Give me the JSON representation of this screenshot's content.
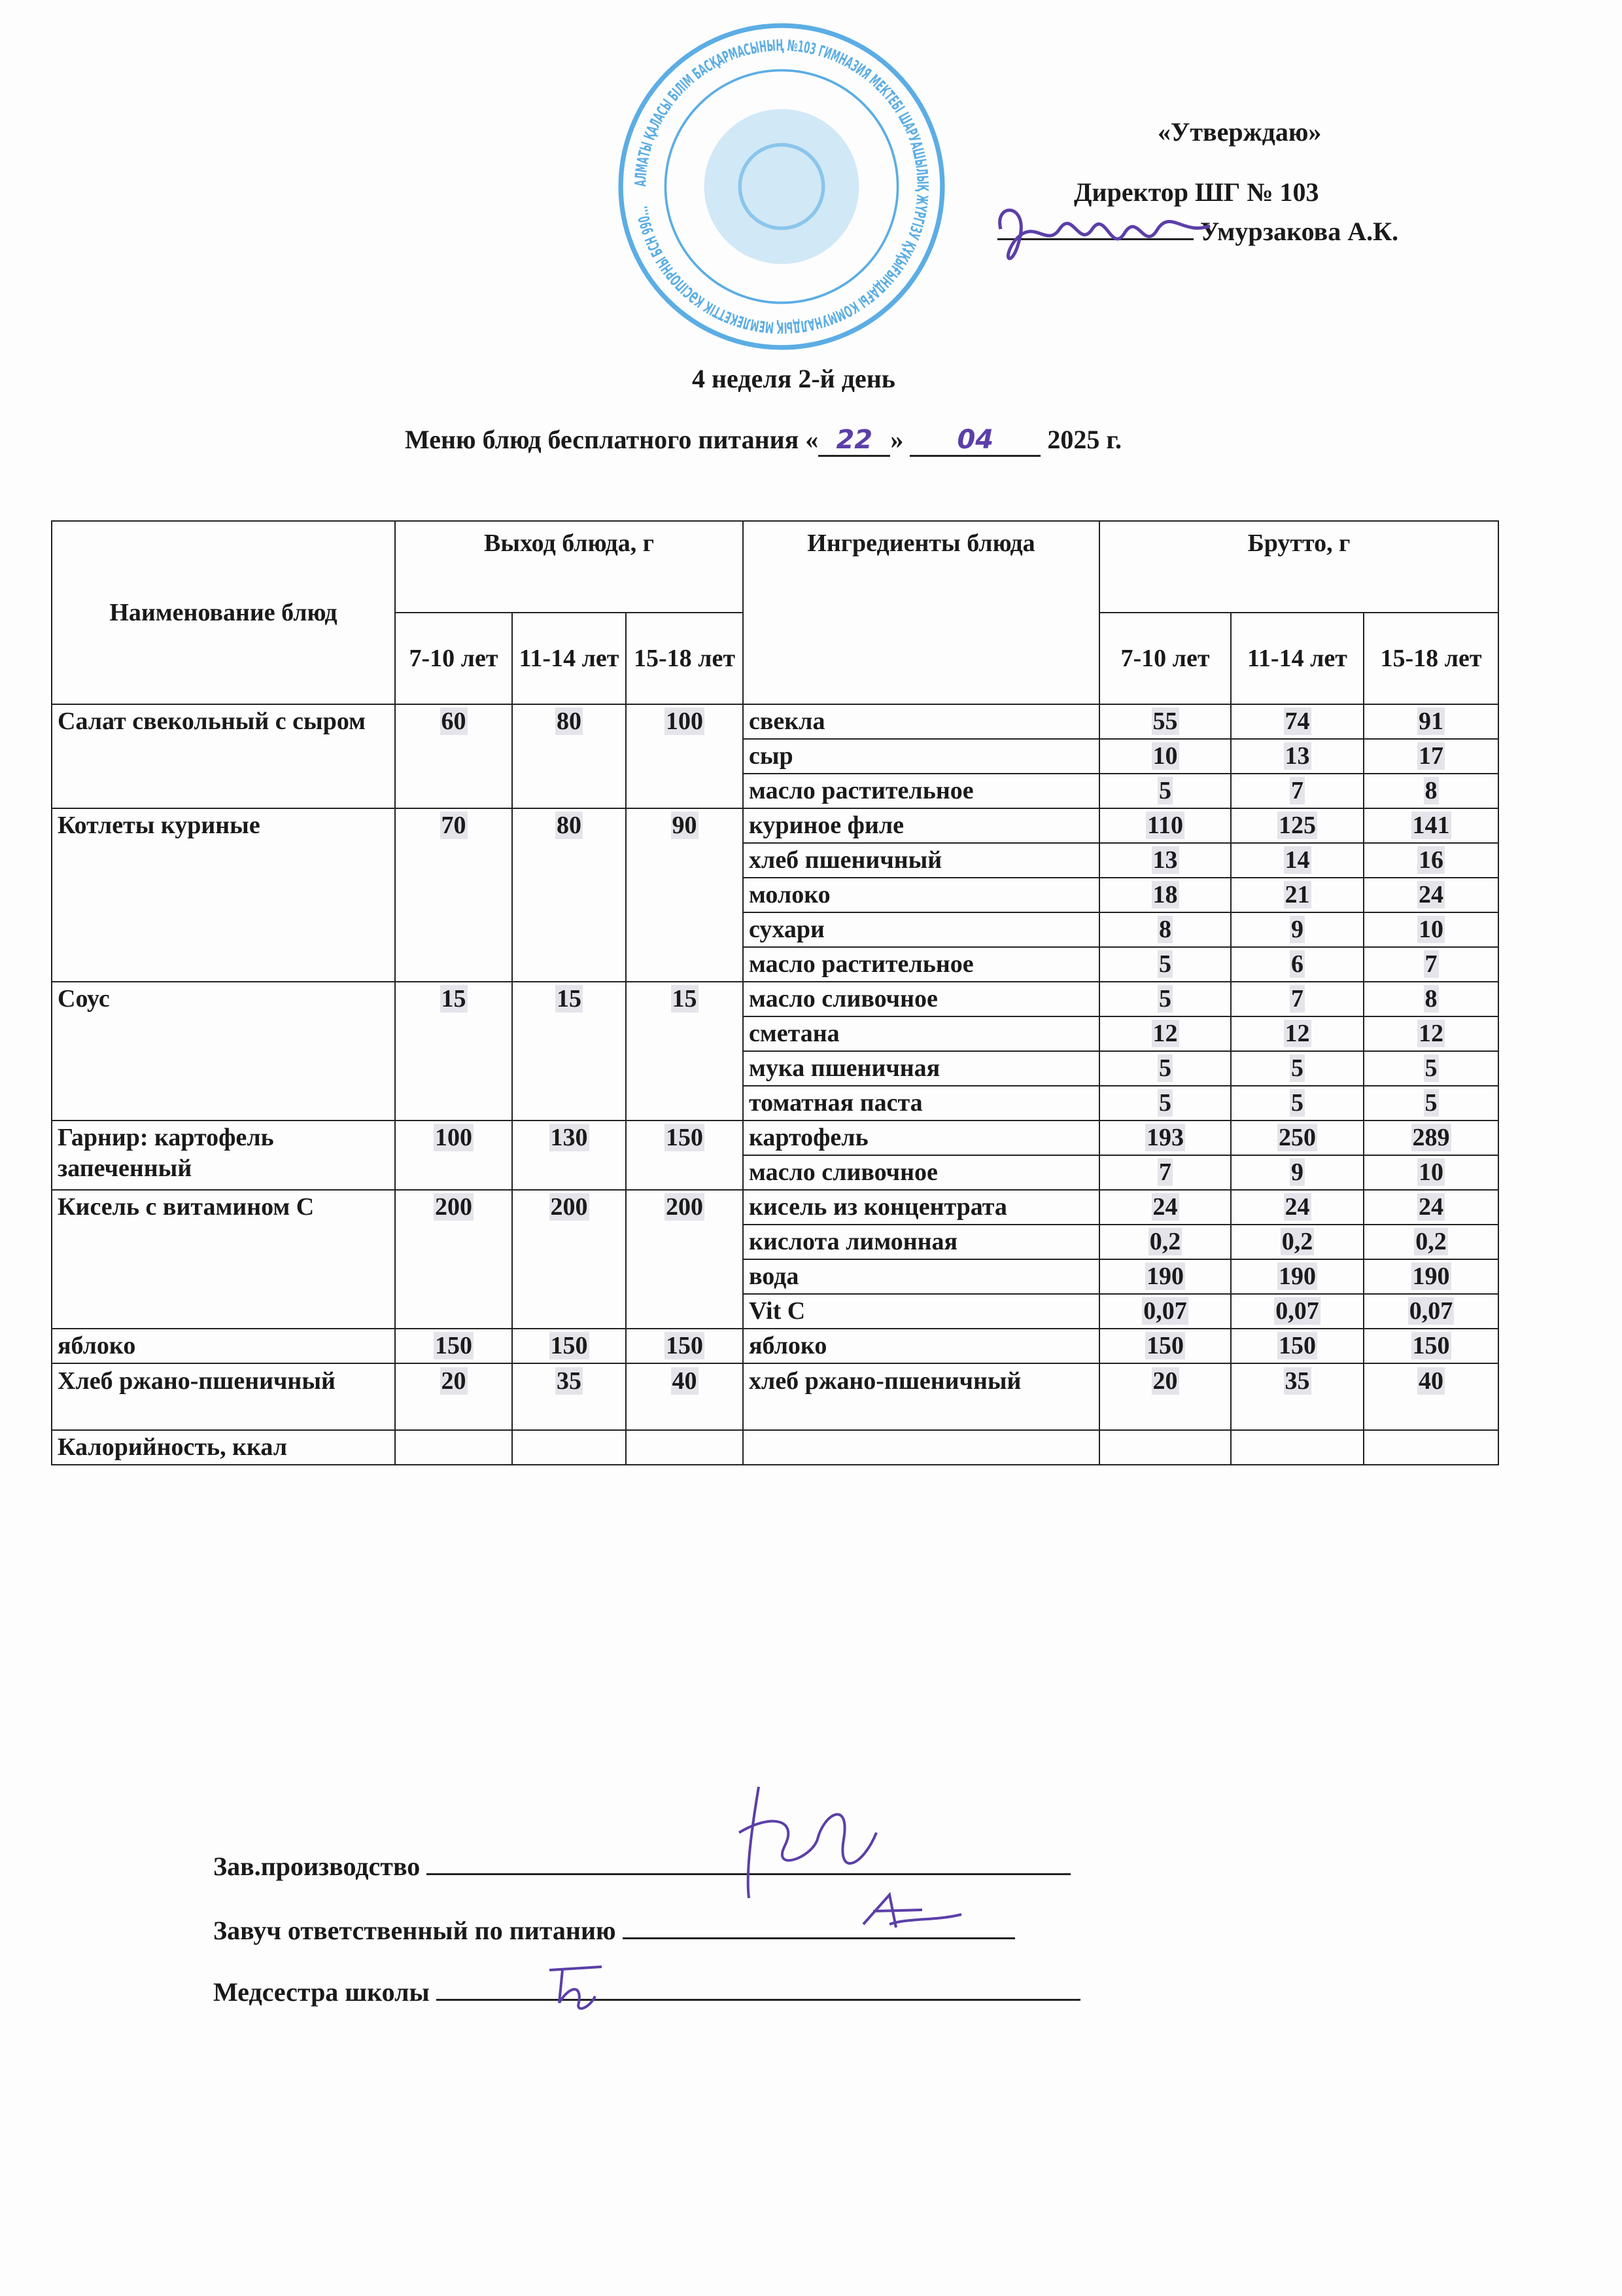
{
  "approval": {
    "approve_label": "«Утверждаю»",
    "director_title": "Директор ШГ № 103",
    "director_name": "Умурзакова А.К.",
    "stamp_text": "АЛМАТЫ ҚАЛАСЫ БІЛІМ БАСҚАРМАСЫНЫҢ №103 ГИМНАЗИЯ МЕКТЕБІ ШАРУАШЫЛЫҚ ЖҮРГІЗУ ҚҰҚЫҒЫНДАҒЫ КОММУНАЛДЫҚ МЕМЛЕКЕТТІК КӘСІПОРНЫ БСН 990..."
  },
  "title": {
    "week_day": "4 неделя 2-й день",
    "menu_prefix": "Меню блюд бесплатного питания «",
    "day": "22",
    "menu_mid": "»",
    "month": "04",
    "year_suffix": "2025 г."
  },
  "table": {
    "headers": {
      "dish_name": "Наименование блюд",
      "output": "Выход блюда, г",
      "ingredients": "Ингредиенты блюда",
      "brutto": "Брутто, г",
      "age_groups": [
        "7-10 лет",
        "11-14 лет",
        "15-18 лет"
      ]
    },
    "dishes": [
      {
        "name": "Салат свекольный с сыром",
        "output": [
          "60",
          "80",
          "100"
        ],
        "ingredients": [
          {
            "name": "свекла",
            "brutto": [
              "55",
              "74",
              "91"
            ]
          },
          {
            "name": "сыр",
            "brutto": [
              "10",
              "13",
              "17"
            ]
          },
          {
            "name": "масло растительное",
            "brutto": [
              "5",
              "7",
              "8"
            ]
          }
        ]
      },
      {
        "name": "Котлеты куриные",
        "output": [
          "70",
          "80",
          "90"
        ],
        "ingredients": [
          {
            "name": "куриное филе",
            "brutto": [
              "110",
              "125",
              "141"
            ]
          },
          {
            "name": "хлеб пшеничный",
            "brutto": [
              "13",
              "14",
              "16"
            ]
          },
          {
            "name": "молоко",
            "brutto": [
              "18",
              "21",
              "24"
            ]
          },
          {
            "name": "сухари",
            "brutto": [
              "8",
              "9",
              "10"
            ]
          },
          {
            "name": "масло растительное",
            "brutto": [
              "5",
              "6",
              "7"
            ]
          }
        ]
      },
      {
        "name": "Соус",
        "output": [
          "15",
          "15",
          "15"
        ],
        "ingredients": [
          {
            "name": "масло сливочное",
            "brutto": [
              "5",
              "7",
              "8"
            ]
          },
          {
            "name": "сметана",
            "brutto": [
              "12",
              "12",
              "12"
            ]
          },
          {
            "name": "мука пшеничная",
            "brutto": [
              "5",
              "5",
              "5"
            ]
          },
          {
            "name": "томатная паста",
            "brutto": [
              "5",
              "5",
              "5"
            ]
          }
        ]
      },
      {
        "name": "Гарнир: картофель запеченный",
        "output": [
          "100",
          "130",
          "150"
        ],
        "ingredients": [
          {
            "name": "картофель",
            "brutto": [
              "193",
              "250",
              "289"
            ]
          },
          {
            "name": "масло сливочное",
            "brutto": [
              "7",
              "9",
              "10"
            ]
          }
        ]
      },
      {
        "name": "Кисель с витамином С",
        "output": [
          "200",
          "200",
          "200"
        ],
        "ingredients": [
          {
            "name": "кисель из концентрата",
            "brutto": [
              "24",
              "24",
              "24"
            ]
          },
          {
            "name": "кислота лимонная",
            "brutto": [
              "0,2",
              "0,2",
              "0,2"
            ]
          },
          {
            "name": "вода",
            "brutto": [
              "190",
              "190",
              "190"
            ]
          },
          {
            "name": "Vit C",
            "brutto": [
              "0,07",
              "0,07",
              "0,07"
            ]
          }
        ]
      },
      {
        "name": "яблоко",
        "output": [
          "150",
          "150",
          "150"
        ],
        "ingredients": [
          {
            "name": "яблоко",
            "brutto": [
              "150",
              "150",
              "150"
            ]
          }
        ]
      },
      {
        "name": "Хлеб ржано-пшеничный",
        "output": [
          "20",
          "35",
          "40"
        ],
        "ingredients": [
          {
            "name": "хлеб ржано-пшеничный",
            "brutto": [
              "20",
              "35",
              "40"
            ]
          }
        ]
      }
    ],
    "calories_label": "Калорийность, ккал"
  },
  "signatures": [
    {
      "role": "Зав.производство"
    },
    {
      "role": "Завуч ответственный по питанию"
    },
    {
      "role": "Медсестра школы"
    }
  ],
  "colors": {
    "stamp": "#3fa0e0",
    "signature_ink": "#5b3fa8",
    "text": "#1a1a1a"
  }
}
